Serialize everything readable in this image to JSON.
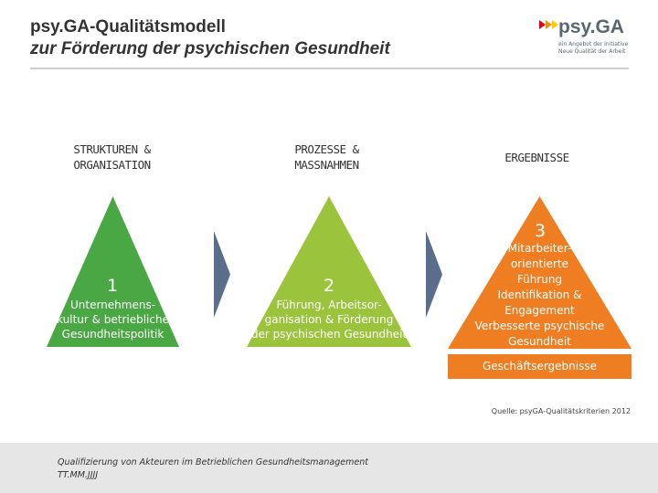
{
  "header": {
    "title_line1": "psy.GA-Qualitätsmodell",
    "title_line2": "zur Förderung der psychischen Gesundheit"
  },
  "logo": {
    "name": "psy.GA",
    "tagline_line1": "ein Angebot der Initiative",
    "tagline_line2": "Neue Qualität der Arbeit"
  },
  "columns": [
    {
      "heading_line1": "STRUKTUREN &",
      "heading_line2": "ORGANISATION",
      "number": "1",
      "text_line1": "Unternehmens-",
      "text_line2": "kultur & betriebliche",
      "text_line3": "Gesundheitspolitik",
      "color": "#4aa844"
    },
    {
      "heading_line1": "PROZESSE &",
      "heading_line2": "MASSNAHMEN",
      "number": "2",
      "text_line1": "Führung, Arbeitsor-",
      "text_line2": "ganisation & Förderung",
      "text_line3": "der psychischen Gesundheit",
      "color": "#9bc43c"
    },
    {
      "heading_line1": "ERGEBNISSE",
      "number": "3",
      "text_line1": "Mitarbeiter-",
      "text_line2": "orientierte",
      "text_line3": "Führung",
      "text_line4": "Identifikation &",
      "text_line5": "Engagement",
      "text_line6": "Verbesserte psychische",
      "text_line7": "Gesundheit",
      "color": "#ef7d22"
    }
  ],
  "result_bar": {
    "label": "Geschäftsergebnisse",
    "color": "#ef7d22"
  },
  "arrow_color": "#5a6e8c",
  "source": "Quelle: psyGA-Qualitätskriterien 2012",
  "footer": {
    "line1": "Qualifizierung von Akteuren im Betrieblichen Gesundheitsmanagement",
    "line2": "TT.MM.JJJJ"
  }
}
